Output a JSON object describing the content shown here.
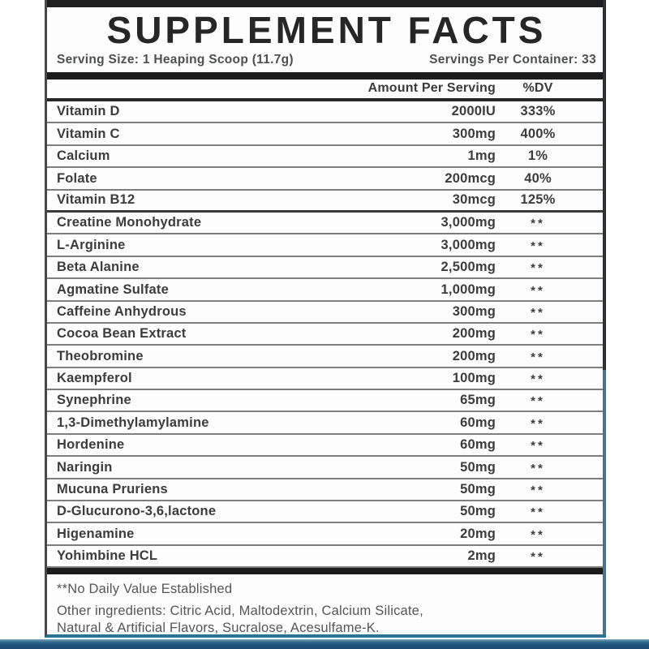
{
  "label": {
    "title": "SUPPLEMENT FACTS",
    "serving_size": "Serving Size: 1 Heaping Scoop (11.7g)",
    "servings_per_container": "Servings Per Container: 33",
    "columns": {
      "amount": "Amount Per Serving",
      "dv": "%DV"
    },
    "rows": [
      {
        "name": "Vitamin D",
        "amount": "2000IU",
        "dv": "333%"
      },
      {
        "name": "Vitamin C",
        "amount": "300mg",
        "dv": "400%"
      },
      {
        "name": "Calcium",
        "amount": "1mg",
        "dv": "1%"
      },
      {
        "name": "Folate",
        "amount": "200mcg",
        "dv": "40%"
      },
      {
        "name": "Vitamin B12",
        "amount": "30mcg",
        "dv": "125%",
        "heavy_divider": true
      },
      {
        "name": "Creatine Monohydrate",
        "amount": "3,000mg",
        "dv": "**"
      },
      {
        "name": "L-Arginine",
        "amount": "3,000mg",
        "dv": "**"
      },
      {
        "name": "Beta Alanine",
        "amount": "2,500mg",
        "dv": "**"
      },
      {
        "name": "Agmatine Sulfate",
        "amount": "1,000mg",
        "dv": "**"
      },
      {
        "name": "Caffeine Anhydrous",
        "amount": "300mg",
        "dv": "**"
      },
      {
        "name": "Cocoa Bean Extract",
        "amount": "200mg",
        "dv": "**"
      },
      {
        "name": "Theobromine",
        "amount": "200mg",
        "dv": "**"
      },
      {
        "name": "Kaempferol",
        "amount": "100mg",
        "dv": "**"
      },
      {
        "name": "Synephrine",
        "amount": "65mg",
        "dv": "**"
      },
      {
        "name": "1,3-Dimethylamylamine",
        "amount": "60mg",
        "dv": "**"
      },
      {
        "name": "Hordenine",
        "amount": "60mg",
        "dv": "**"
      },
      {
        "name": "Naringin",
        "amount": "50mg",
        "dv": "**"
      },
      {
        "name": "Mucuna Pruriens",
        "amount": "50mg",
        "dv": "**"
      },
      {
        "name": "D-Glucurono-3,6,lactone",
        "amount": "50mg",
        "dv": "**"
      },
      {
        "name": "Higenamine",
        "amount": "20mg",
        "dv": "**"
      },
      {
        "name": "Yohimbine HCL",
        "amount": "2mg",
        "dv": "**"
      }
    ],
    "footnote": "**No Daily Value Established",
    "other_ingredients_lines": [
      "Other ingredients: Citric Acid, Maltodextrin, Calcium Silicate,",
      "Natural & Artificial Flavors, Sucralose, Acesulfame-K."
    ],
    "colors": {
      "bar_black": "#1f1f1f",
      "divider_gray": "#7e7e7e",
      "accent_teal": "#2e7291",
      "bottom_bar_blue": "#1e4f78",
      "text_dark": "#3c3c3c",
      "text_gray": "#565656"
    }
  }
}
